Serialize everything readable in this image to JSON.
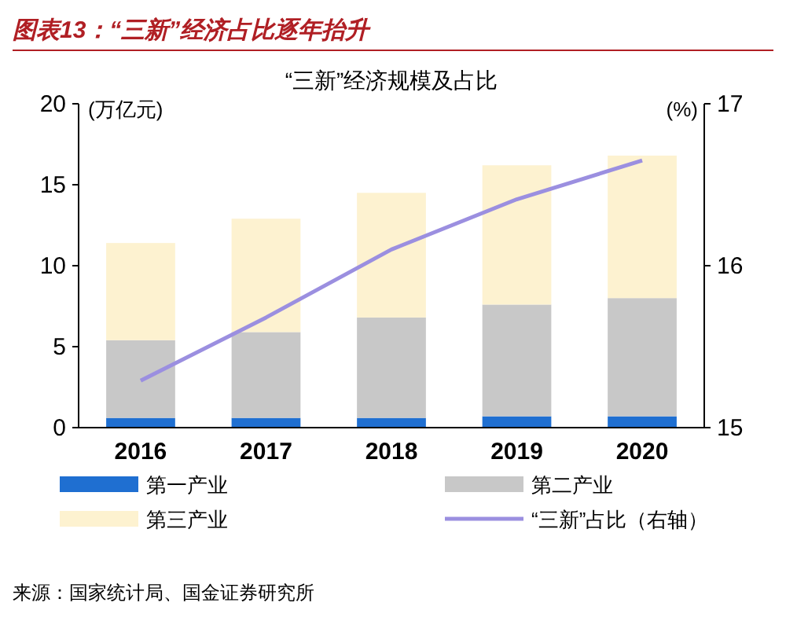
{
  "chart_data": {
    "type": "bar",
    "title": "图表13：“三新”经济占比逐年抬升",
    "subtitle": "“三新”经济规模及占比",
    "ylabel": "(万亿元)",
    "y2label": "(%)",
    "categories": [
      "2016",
      "2017",
      "2018",
      "2019",
      "2020"
    ],
    "stacked": true,
    "series": [
      {
        "name": "第一产业",
        "color": "#1f6fd1",
        "values": [
          0.6,
          0.6,
          0.6,
          0.7,
          0.7
        ]
      },
      {
        "name": "第二产业",
        "color": "#c8c8c8",
        "values": [
          4.8,
          5.3,
          6.2,
          6.9,
          7.3
        ]
      },
      {
        "name": "第三产业",
        "color": "#fdf2d0",
        "values": [
          6.0,
          7.0,
          7.7,
          8.6,
          8.8
        ]
      },
      {
        "name": "“三新”占比（右轴）",
        "type": "line",
        "axis": "y2",
        "color": "#9b8fe0",
        "values": [
          15.29,
          15.68,
          16.1,
          16.41,
          16.65
        ]
      }
    ],
    "ylim": [
      0,
      20
    ],
    "yticks": [
      0,
      5,
      10,
      15,
      20
    ],
    "y2lim": [
      15,
      17
    ],
    "y2ticks": [
      15,
      16,
      17
    ],
    "legend": "bottom",
    "annotations": [
      "来源：国家统计局、国金证券研究所"
    ]
  }
}
